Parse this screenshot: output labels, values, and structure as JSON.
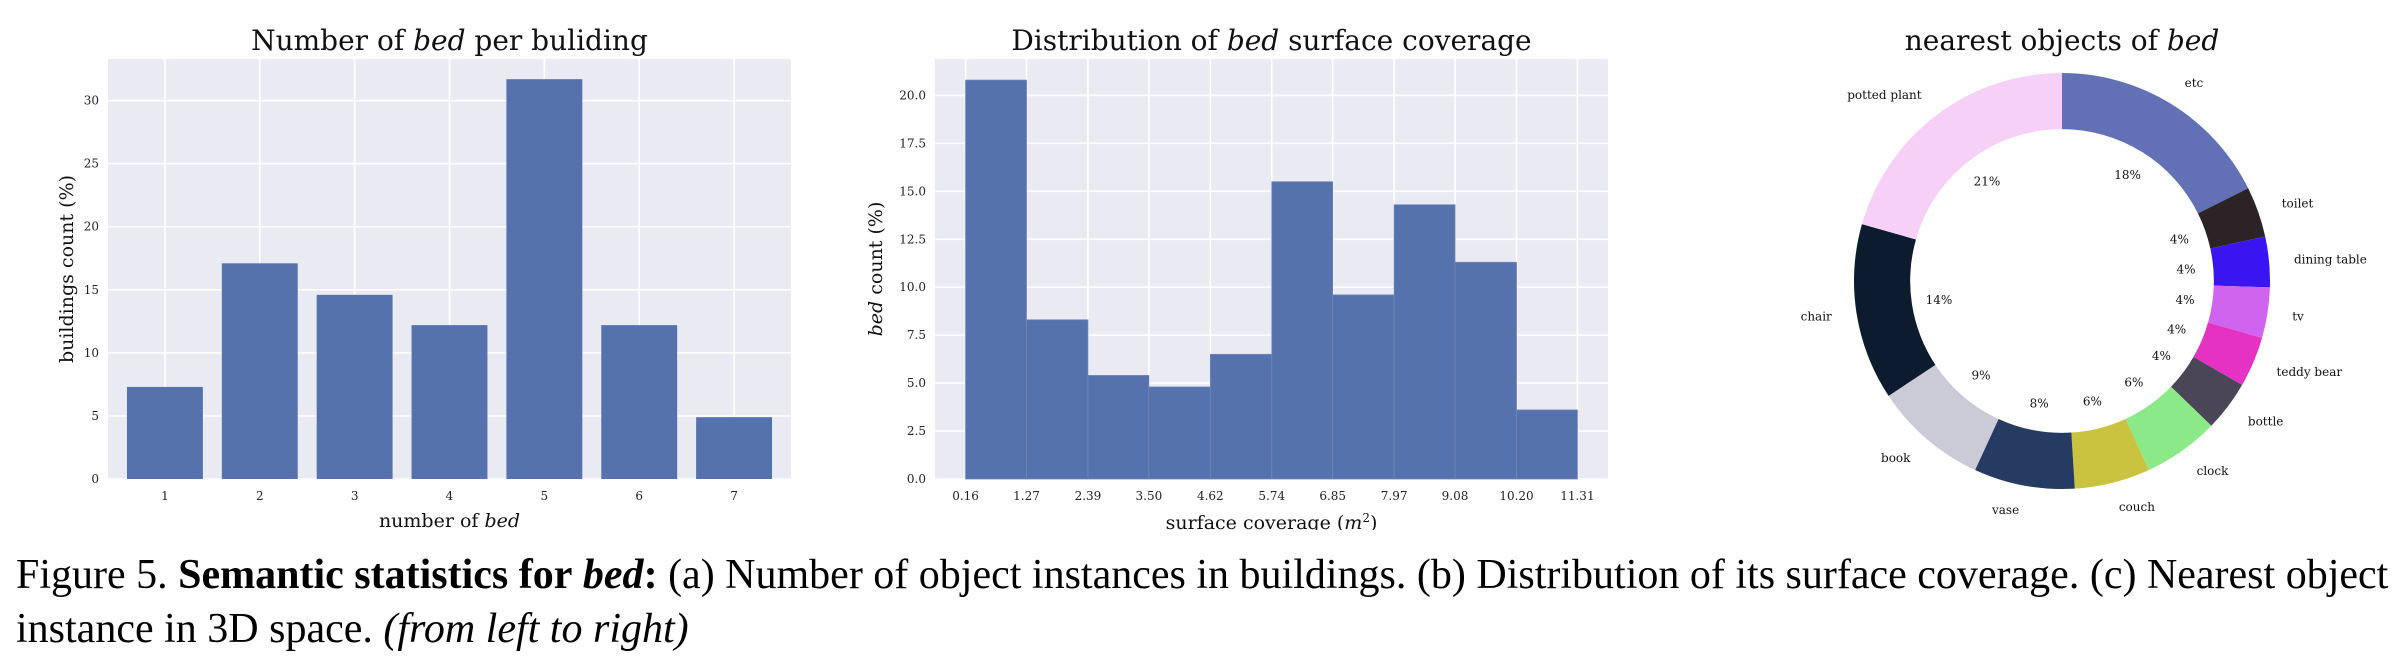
{
  "chart_data": [
    {
      "type": "bar",
      "title": {
        "pre": "Number of ",
        "em": "bed",
        "post": " per buliding"
      },
      "xlabel": {
        "pre": "number of ",
        "em": "bed",
        "post": ""
      },
      "ylabel": "buildings count (%)",
      "categories": [
        "1",
        "2",
        "3",
        "4",
        "5",
        "6",
        "7"
      ],
      "values": [
        7.3,
        17.1,
        14.6,
        12.2,
        31.7,
        12.2,
        4.9
      ],
      "ylim": [
        0,
        33.3
      ],
      "yticks": [
        "0",
        "5",
        "10",
        "15",
        "20",
        "25",
        "30"
      ],
      "grid": true,
      "bar_color": "#5572ad",
      "plot_bg": "#eaeaf2"
    },
    {
      "type": "bar",
      "title": {
        "pre": "Distribution of ",
        "em": "bed",
        "post": " surface coverage"
      },
      "xlabel": {
        "pre": "surface coverage (",
        "math": "m",
        "sup": "2",
        "post": ")"
      },
      "ylabel": {
        "em": "bed",
        "post": " count (%)"
      },
      "bin_edges": [
        0.16,
        1.27,
        2.39,
        3.5,
        4.62,
        5.74,
        6.85,
        7.97,
        9.08,
        10.2,
        11.31
      ],
      "xticks": [
        "0.16",
        "1.27",
        "2.39",
        "3.50",
        "4.62",
        "5.74",
        "6.85",
        "7.97",
        "9.08",
        "10.20",
        "11.31"
      ],
      "values": [
        20.8,
        8.3,
        5.4,
        4.8,
        6.5,
        15.5,
        9.6,
        14.3,
        11.3,
        3.6
      ],
      "ylim": [
        0,
        21.9
      ],
      "yticks": [
        "0.0",
        "2.5",
        "5.0",
        "7.5",
        "10.0",
        "12.5",
        "15.0",
        "17.5",
        "20.0"
      ],
      "grid": true,
      "bar_color": "#5572ad",
      "plot_bg": "#eaeaf2"
    },
    {
      "type": "pie",
      "title": {
        "pre": "nearest objects of ",
        "em": "bed",
        "post": ""
      },
      "slices": [
        {
          "label": "etc",
          "pct_label": "18%",
          "value": 18,
          "color": "#6271b5"
        },
        {
          "label": "toilet",
          "pct_label": "4%",
          "value": 4,
          "color": "#2b2325"
        },
        {
          "label": "dining table",
          "pct_label": "4%",
          "value": 4,
          "color": "#3a15f2"
        },
        {
          "label": "tv",
          "pct_label": "4%",
          "value": 4,
          "color": "#cf64ef"
        },
        {
          "label": "teddy bear",
          "pct_label": "4%",
          "value": 4,
          "color": "#e433c3"
        },
        {
          "label": "bottle",
          "pct_label": "4%",
          "value": 4,
          "color": "#4a4658"
        },
        {
          "label": "clock",
          "pct_label": "6%",
          "value": 6,
          "color": "#8ce988"
        },
        {
          "label": "couch",
          "pct_label": "6%",
          "value": 6,
          "color": "#c9c340"
        },
        {
          "label": "vase",
          "pct_label": "8%",
          "value": 8,
          "color": "#263b61"
        },
        {
          "label": "book",
          "pct_label": "9%",
          "value": 9,
          "color": "#cbcbd7"
        },
        {
          "label": "chair",
          "pct_label": "14%",
          "value": 14,
          "color": "#0c1c2e"
        },
        {
          "label": "potted plant",
          "pct_label": "21%",
          "value": 21,
          "color": "#f6d0f7"
        }
      ],
      "start_angle_deg": 90,
      "direction": "clockwise",
      "hole_ratio": 0.73
    }
  ],
  "caption": {
    "fig": "Figure 5.",
    "bold": "Semantic statistics for",
    "bold_em": "bed",
    "colon": ":",
    "text": " (a) Number of object instances in buildings. (b) Distribution of its surface coverage. (c) Nearest object instance in 3D space. ",
    "em": "(from left to right)"
  }
}
